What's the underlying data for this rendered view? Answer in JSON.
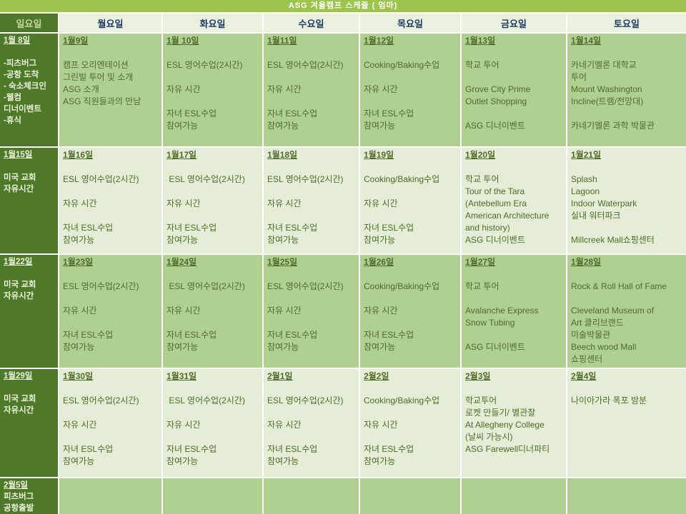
{
  "title": "ASG 겨울캠프 스케줄 ( 엄마)",
  "day_headers": [
    "일요일",
    "월요일",
    "화요일",
    "수요일",
    "목요일",
    "금요일",
    "토요일"
  ],
  "colors": {
    "title_bg": "#9dc44d",
    "header_bg": "#eaf1de",
    "header_text": "#1f3864",
    "sunday_bg": "#4e7928",
    "sunday_text": "#ecf3dd",
    "sunday_header_text": "#c4d89d",
    "band_medium": "#afd091",
    "band_pale": "#e4eed7",
    "cell_text": "#4f6b28",
    "grid_line": "#ffffff"
  },
  "weeks": [
    {
      "cells": [
        {
          "date": "1월 8일",
          "body": "\n-피츠버그\n-공항 도착\n- 숙소체크인\n-웰컴\n디너이벤트\n-휴식"
        },
        {
          "date": "1월9일",
          "body": "\n캠프 오리엔테이션\n그린빌 투어 및 소개\nASG 소개\nASG 직원들과의 만남"
        },
        {
          "date": "1월 10일",
          "body": "\nESL 영어수업(2시간)\n\n자유 시간\n\n자녀 ESL수업\n참여가능"
        },
        {
          "date": "1월11일",
          "body": "\nESL 영어수업(2시간)\n\n자유 시간\n\n자녀 ESL수업\n참여가능"
        },
        {
          "date": "1월12일",
          "body": "\nCooking/Baking수업\n\n자유 시간\n\n자녀 ESL수업\n참여가능"
        },
        {
          "date": "1월13일",
          "body": "\n학교 투어\n\nGrove City Prime\nOutlet Shopping\n\nASG 디너이벤트"
        },
        {
          "date": "1월14일",
          "body": "\n카네기멜론 대학교\n투어\nMount Washington\nIncline(트램/전망대)\n\n카네기멜론 과학 박물관"
        }
      ]
    },
    {
      "cells": [
        {
          "date": "1월15일",
          "body": "\n미국 교회\n자유시간"
        },
        {
          "date": "1월16일",
          "body": "\nESL 영어수업(2시간)\n\n자유 시간\n\n자녀 ESL수업\n참여가능"
        },
        {
          "date": "1월17일",
          "body": "\n ESL 영어수업(2시간)\n\n자유 시간\n\n자녀 ESL수업\n참여가능"
        },
        {
          "date": "1월18일",
          "body": "\nESL 영어수업(2시간)\n\n자유 시간\n\n자녀 ESL수업\n참여가능"
        },
        {
          "date": "1월19일",
          "body": "\nCooking/Baking수업\n\n자유 시간\n\n자녀 ESL수업\n참여가능"
        },
        {
          "date": "1월20일",
          "body": "\n학교 투어\nTour of the Tara\n(Antebellum Era\nAmerican Architecture\nand history)\nASG 디너이벤트"
        },
        {
          "date": "1월21일",
          "body": "\nSplash\nLagoon\nIndoor Waterpark\n실내 워터파크\n\nMillcreek Mall쇼핑센터"
        }
      ]
    },
    {
      "cells": [
        {
          "date": "1월22일",
          "body": "\n미국 교회\n자유시간"
        },
        {
          "date": "1월23일",
          "body": "\nESL 영어수업(2시간)\n\n자유 시간\n\n자녀 ESL수업\n참여가능"
        },
        {
          "date": "1월24일",
          "body": "\n ESL 영어수업(2시간)\n\n자유 시간\n\n자녀 ESL수업\n참여가능"
        },
        {
          "date": "1월25일",
          "body": "\nESL 영어수업(2시간)\n\n자유 시간\n\n자녀 ESL수업\n참여가능"
        },
        {
          "date": "1월26일",
          "body": "\nCooking/Baking수업\n\n자유 시간\n\n자녀 ESL수업\n참여가능"
        },
        {
          "date": "1월27일",
          "body": "\n학교 투어\n\nAvalanche Express\nSnow Tubing\n\nASG 디너이벤트"
        },
        {
          "date": "1월28일",
          "body": "\nRock & Roll Hall of Fame\n\nCleveland Museum of\nArt 클리브랜드\n미술박물관\nBeech wood Mall\n쇼핑센터"
        }
      ]
    },
    {
      "cells": [
        {
          "date": "1월29일",
          "body": "\n미국 교회\n자유시간"
        },
        {
          "date": "1월30일",
          "body": "\nESL 영어수업(2시간)\n\n자유 시간\n\n자녀 ESL수업\n참여가능"
        },
        {
          "date": "1월31일",
          "body": "\n ESL 영어수업(2시간)\n\n자유 시간\n\n자녀 ESL수업\n참여가능"
        },
        {
          "date": "2월1일",
          "body": "\nESL 영어수업(2시간)\n\n자유 시간\n\n자녀 ESL수업\n참여가능"
        },
        {
          "date": "2월2일",
          "body": "\nCooking/Baking수업\n\n자유 시간\n\n자녀 ESL수업\n참여가능"
        },
        {
          "date": "2월3일",
          "body": "\n학교투어\n로켓 만들기/ 별관찰\nAt Allegheny College\n(날씨 가능시)\nASG Farewell디너파티"
        },
        {
          "date": "2월4일",
          "body": "\n나이아가라 폭포 방분"
        }
      ]
    },
    {
      "cells": [
        {
          "date": "2월5일",
          "body": "피츠버그\n공항출발"
        },
        {
          "date": "",
          "body": ""
        },
        {
          "date": "",
          "body": ""
        },
        {
          "date": "",
          "body": ""
        },
        {
          "date": "",
          "body": ""
        },
        {
          "date": "",
          "body": ""
        },
        {
          "date": "",
          "body": ""
        }
      ]
    }
  ]
}
